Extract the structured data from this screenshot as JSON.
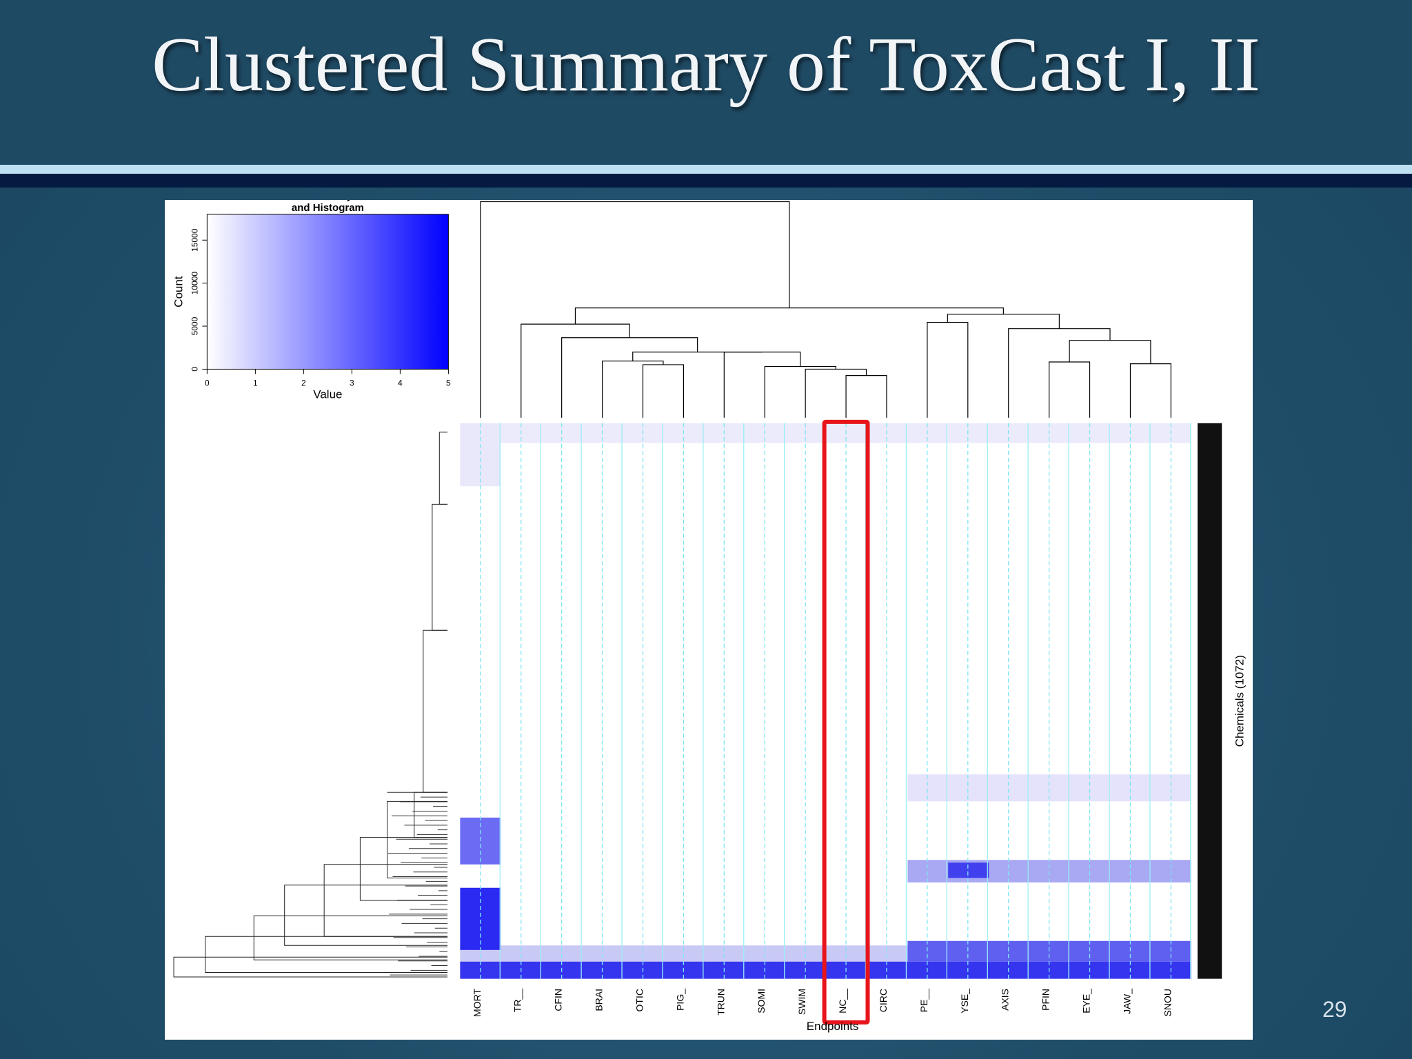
{
  "slide": {
    "title": "Clustered Summary of ToxCast I, II",
    "page_number": "29"
  },
  "chart_data": [
    {
      "type": "colorkey",
      "title_lines": [
        "Color Key",
        "and Histogram"
      ],
      "xlabel": "Value",
      "ylabel": "Count",
      "xlim": [
        0,
        5
      ],
      "xticks": [
        0,
        1,
        2,
        3,
        4,
        5
      ],
      "ylim": [
        0,
        18000
      ],
      "yticks": [
        0,
        5000,
        10000,
        15000
      ],
      "colors": [
        "#ffffff",
        "#0000ff"
      ]
    },
    {
      "type": "heatmap",
      "xlabel": "Endpoints",
      "ylabel": "Chemicals (1072)",
      "categories": [
        "MORT",
        "TR__",
        "CFIN",
        "BRAI",
        "OTIC",
        "PIG_",
        "TRUN",
        "SOMI",
        "SWIM",
        "NC__",
        "CIRC",
        "PE__",
        "YSE_",
        "AXIS",
        "PFIN",
        "EYE_",
        "JAW_",
        "SNOU"
      ],
      "highlight": "NC__",
      "highlight_color": "#e8141b"
    }
  ]
}
